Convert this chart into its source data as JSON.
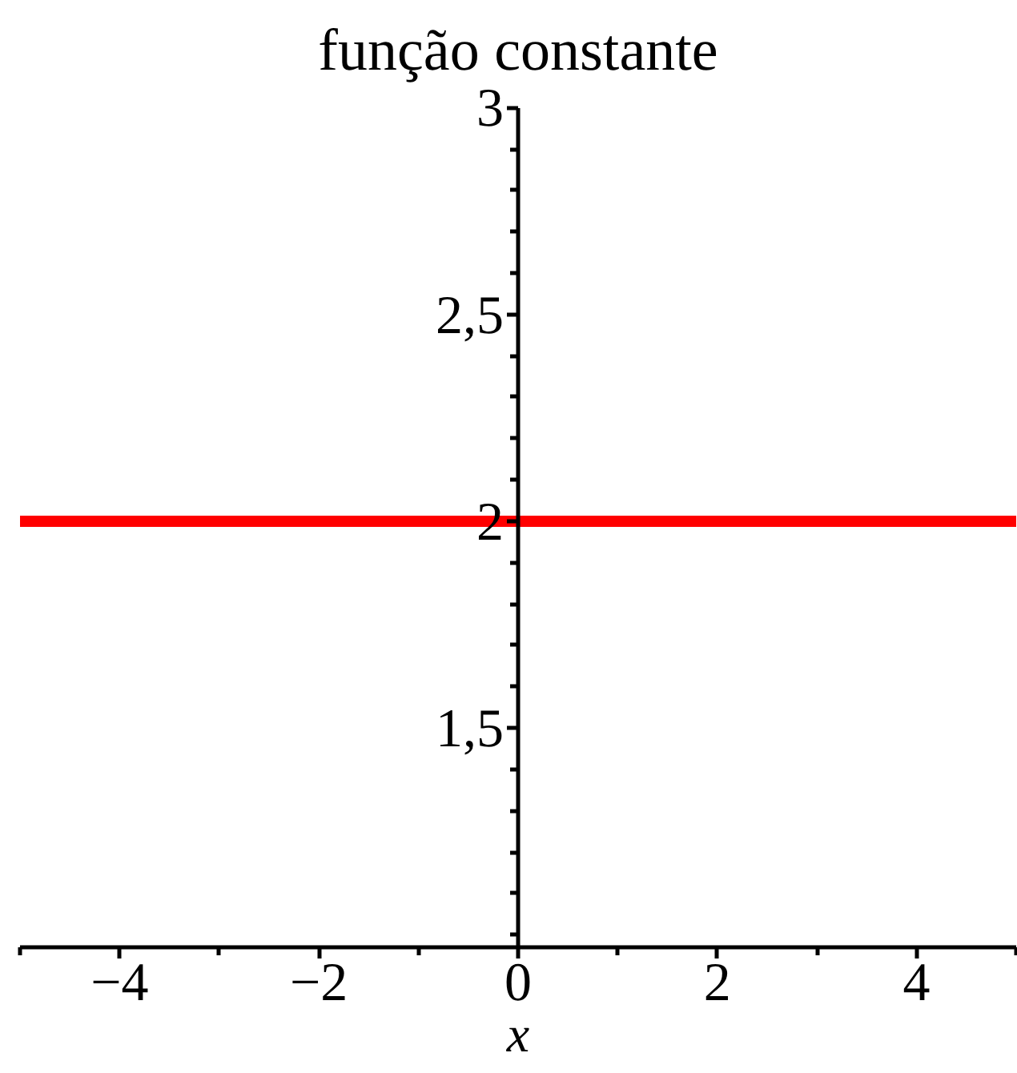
{
  "chart_data": {
    "type": "line",
    "title": "função constante",
    "xlabel": "x",
    "x": [
      -5,
      5
    ],
    "values": [
      2,
      2
    ],
    "color": "#ff0000",
    "xlim": [
      -5,
      5
    ],
    "ylim": [
      0.97,
      3
    ],
    "xticks": [
      {
        "value": -5,
        "label": null
      },
      -4,
      {
        "value": -3,
        "label": null
      },
      -2,
      {
        "value": -1,
        "label": null
      },
      0,
      {
        "value": 1,
        "label": null
      },
      2,
      {
        "value": 3,
        "label": null
      },
      4,
      {
        "value": 5,
        "label": null
      }
    ],
    "yticks": [
      {
        "value": 1.0,
        "label": null
      },
      {
        "value": 1.1,
        "label": null
      },
      {
        "value": 1.2,
        "label": null
      },
      {
        "value": 1.3,
        "label": null
      },
      {
        "value": 1.4,
        "label": null
      },
      {
        "value": 1.5,
        "label": "1,5"
      },
      {
        "value": 1.6,
        "label": null
      },
      {
        "value": 1.7,
        "label": null
      },
      {
        "value": 1.8,
        "label": null
      },
      {
        "value": 1.9,
        "label": null
      },
      2,
      {
        "value": 2.1,
        "label": null
      },
      {
        "value": 2.2,
        "label": null
      },
      {
        "value": 2.3,
        "label": null
      },
      {
        "value": 2.4,
        "label": null
      },
      {
        "value": 2.5,
        "label": "2,5"
      },
      {
        "value": 2.6,
        "label": null
      },
      {
        "value": 2.7,
        "label": null
      },
      {
        "value": 2.8,
        "label": null
      },
      {
        "value": 2.9,
        "label": null
      },
      3
    ],
    "grid": false,
    "marker": "none",
    "line_style": "solid"
  }
}
